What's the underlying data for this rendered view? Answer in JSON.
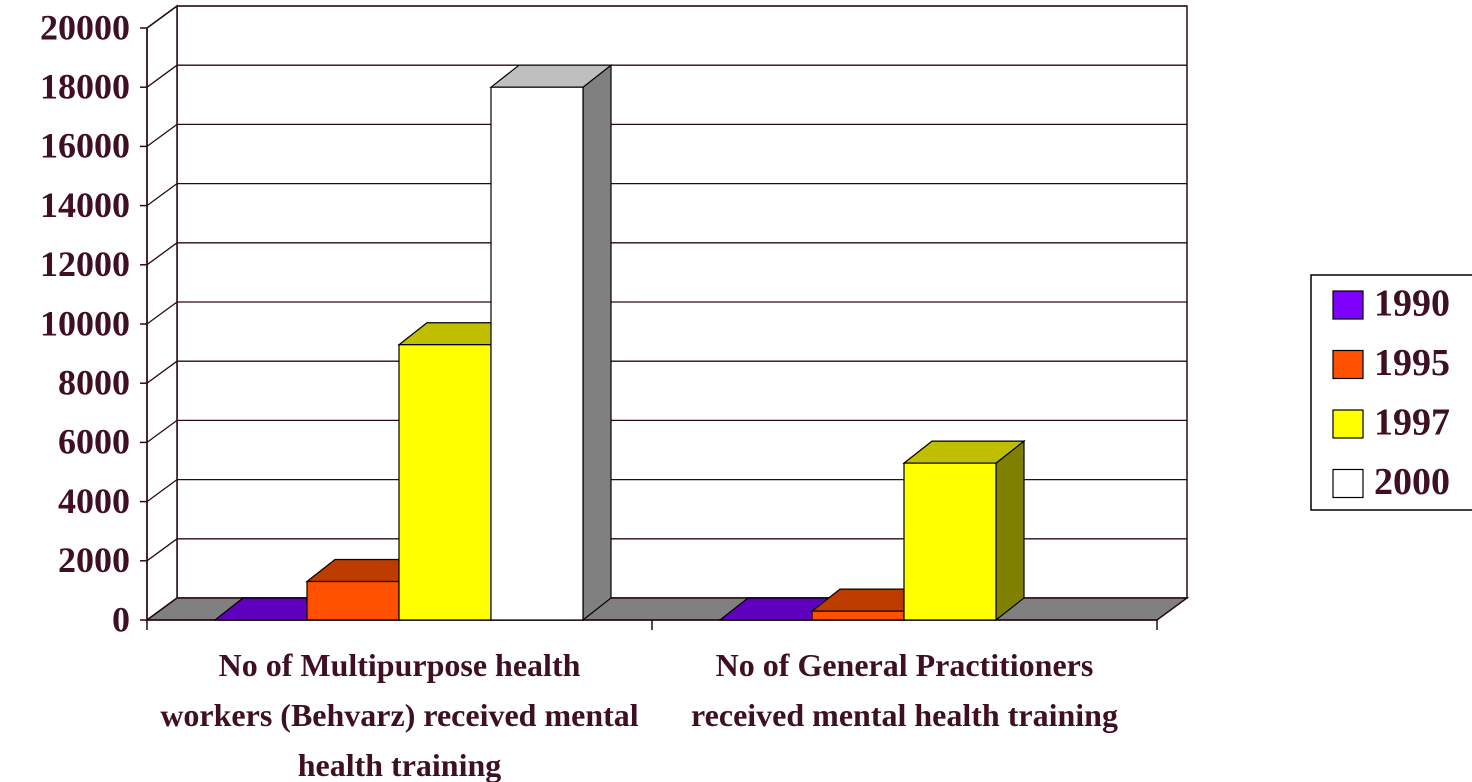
{
  "chart_data": {
    "type": "bar3d",
    "categories": [
      "No of Multipurpose health workers (Behvarz) received mental health training",
      "No of General Practitioners received mental health training"
    ],
    "series": [
      {
        "name": "1990",
        "color": "#8000ff",
        "values": [
          0,
          0
        ]
      },
      {
        "name": "1995",
        "color": "#ff5000",
        "values": [
          1300,
          300
        ]
      },
      {
        "name": "1997",
        "color": "#ffff00",
        "values": [
          9300,
          5300
        ]
      },
      {
        "name": "2000",
        "color": "#ffffff",
        "values": [
          18000,
          null
        ]
      }
    ],
    "ylim": [
      0,
      20000
    ],
    "yticks": [
      0,
      2000,
      4000,
      6000,
      8000,
      10000,
      12000,
      14000,
      16000,
      18000,
      20000
    ],
    "grid": true,
    "legend": "right"
  }
}
